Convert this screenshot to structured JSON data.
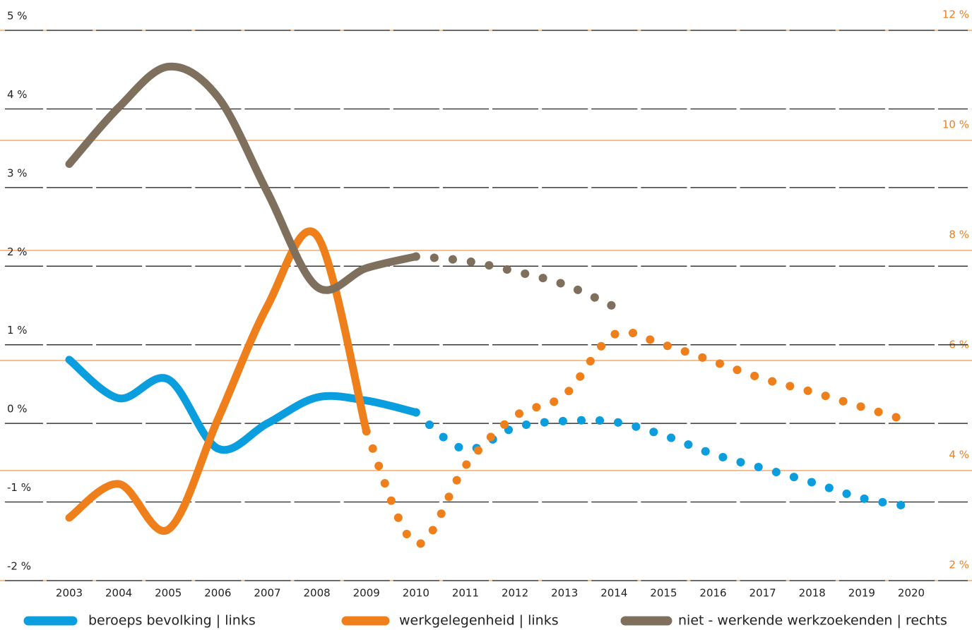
{
  "chart_data": {
    "type": "line",
    "x": [
      2003,
      2004,
      2005,
      2006,
      2007,
      2008,
      2009,
      2010,
      2011,
      2012,
      2013,
      2014,
      2015,
      2016,
      2017,
      2018,
      2019,
      2020
    ],
    "ylim": [
      -2,
      5
    ],
    "yticks": [
      {
        "value": -2,
        "label": "-2 %"
      },
      {
        "value": -1,
        "label": "-1 %"
      },
      {
        "value": 0,
        "label": "0 %"
      },
      {
        "value": 1,
        "label": "1 %"
      },
      {
        "value": 2,
        "label": "2 %"
      },
      {
        "value": 3,
        "label": "3 %"
      },
      {
        "value": 4,
        "label": "4 %"
      },
      {
        "value": 5,
        "label": "5 %"
      }
    ],
    "y2lim": [
      2,
      12
    ],
    "y2ticks": [
      {
        "value": 2,
        "label": "2 %"
      },
      {
        "value": 4,
        "label": "4 %"
      },
      {
        "value": 6,
        "label": "6 %"
      },
      {
        "value": 8,
        "label": "8 %"
      },
      {
        "value": 10,
        "label": "10 %"
      },
      {
        "value": 12,
        "label": "12 %"
      }
    ],
    "grid": true,
    "series": [
      {
        "name": "beroeps bevolking | links",
        "color": "#0a9ede",
        "solid_until": 2010,
        "values": [
          0.81,
          0.32,
          0.56,
          -0.32,
          0.0,
          0.33,
          0.29,
          0.14,
          -0.33,
          -0.05,
          0.03,
          0.02,
          -0.15,
          -0.39,
          -0.57,
          -0.75,
          -0.95,
          -1.06
        ]
      },
      {
        "name": "werkgelegenheid | links",
        "color": "#ee7f1b",
        "solid_until": 2009,
        "values": [
          -1.2,
          -0.77,
          -1.35,
          0.05,
          1.49,
          2.39,
          -0.1,
          -1.53,
          -0.54,
          0.09,
          0.36,
          1.13,
          1.0,
          0.79,
          0.57,
          0.4,
          0.21,
          0.02
        ]
      },
      {
        "name": "niet - werkende werkzoekenden | rechts",
        "color": "#7f6f5d",
        "solid_until": 2010,
        "axis": "y2",
        "values": [
          9.57,
          10.6,
          11.34,
          10.79,
          9.06,
          7.34,
          7.68,
          7.89,
          7.81,
          7.62,
          7.38,
          6.98,
          null,
          null,
          null,
          null,
          null,
          null
        ]
      }
    ]
  }
}
